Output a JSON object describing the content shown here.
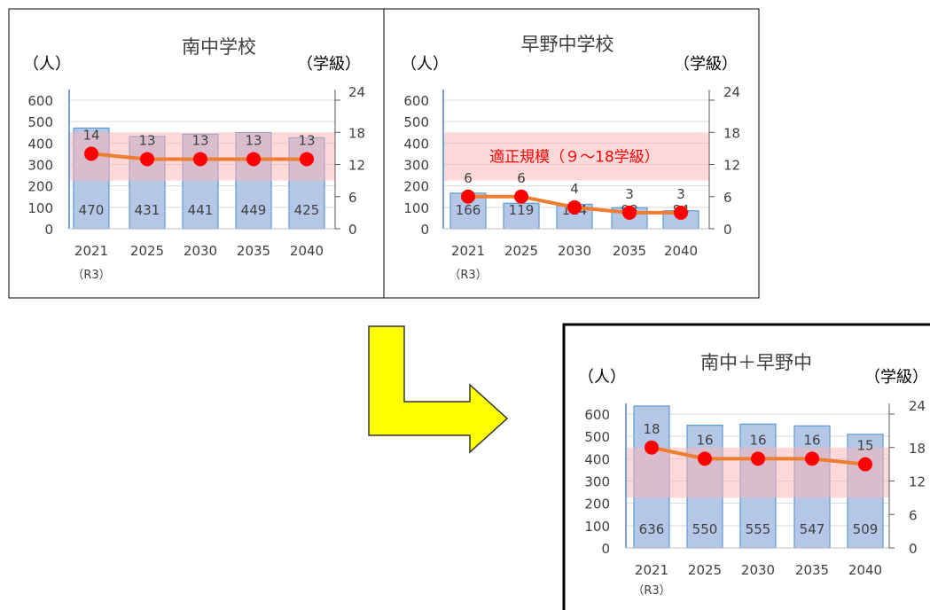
{
  "chart_data": [
    {
      "type": "bar",
      "title": "南中学校",
      "left_unit": "（人）",
      "right_unit": "（学級）",
      "categories": [
        "2021",
        "2025",
        "2030",
        "2035",
        "2040"
      ],
      "category_sublabels": [
        "（R3）",
        "",
        "",
        "",
        ""
      ],
      "ylim": [
        0,
        600
      ],
      "y_ticks": [
        0,
        100,
        200,
        300,
        400,
        500,
        600
      ],
      "y2lim": [
        0,
        24
      ],
      "y2_ticks": [
        0,
        6,
        12,
        18,
        24
      ],
      "band": {
        "from": 9,
        "to": 18,
        "label": ""
      },
      "series": [
        {
          "type": "bar",
          "axis": "left",
          "values": [
            470,
            431,
            441,
            449,
            425
          ]
        },
        {
          "type": "line",
          "axis": "right",
          "values": [
            14,
            13,
            13,
            13,
            13
          ]
        }
      ],
      "colors": {
        "bar_fill": "#b4c7e7",
        "bar_stroke": "#5b9bd5",
        "line": "#ed7d31",
        "marker": "#ff0000",
        "band": "#ffb3b3"
      }
    },
    {
      "type": "bar",
      "title": "早野中学校",
      "left_unit": "（人）",
      "right_unit": "（学級）",
      "categories": [
        "2021",
        "2025",
        "2030",
        "2035",
        "2040"
      ],
      "category_sublabels": [
        "（R3）",
        "",
        "",
        "",
        ""
      ],
      "ylim": [
        0,
        600
      ],
      "y_ticks": [
        0,
        100,
        200,
        300,
        400,
        500,
        600
      ],
      "y2lim": [
        0,
        24
      ],
      "y2_ticks": [
        0,
        6,
        12,
        18,
        24
      ],
      "band": {
        "from": 9,
        "to": 18,
        "label": "適正規模（９～18学級）"
      },
      "series": [
        {
          "type": "bar",
          "axis": "left",
          "values": [
            166,
            119,
            114,
            98,
            84
          ]
        },
        {
          "type": "line",
          "axis": "right",
          "values": [
            6,
            6,
            4,
            3,
            3
          ]
        }
      ],
      "colors": {
        "bar_fill": "#b4c7e7",
        "bar_stroke": "#5b9bd5",
        "line": "#ed7d31",
        "marker": "#ff0000",
        "band": "#ffb3b3"
      }
    },
    {
      "type": "bar",
      "title": "南中＋早野中",
      "left_unit": "（人）",
      "right_unit": "（学級）",
      "categories": [
        "2021",
        "2025",
        "2030",
        "2035",
        "2040"
      ],
      "category_sublabels": [
        "（R3）",
        "",
        "",
        "",
        ""
      ],
      "ylim": [
        0,
        600
      ],
      "y_ticks": [
        0,
        100,
        200,
        300,
        400,
        500,
        600
      ],
      "y2lim": [
        0,
        24
      ],
      "y2_ticks": [
        0,
        6,
        12,
        18,
        24
      ],
      "band": {
        "from": 9,
        "to": 18,
        "label": ""
      },
      "series": [
        {
          "type": "bar",
          "axis": "left",
          "values": [
            636,
            550,
            555,
            547,
            509
          ]
        },
        {
          "type": "line",
          "axis": "right",
          "values": [
            18,
            16,
            16,
            16,
            15
          ]
        }
      ],
      "colors": {
        "bar_fill": "#b4c7e7",
        "bar_stroke": "#5b9bd5",
        "line": "#ed7d31",
        "marker": "#ff0000",
        "band": "#ffb3b3"
      }
    }
  ],
  "arrow": {
    "fill": "#ffff00",
    "stroke": "#333333"
  }
}
